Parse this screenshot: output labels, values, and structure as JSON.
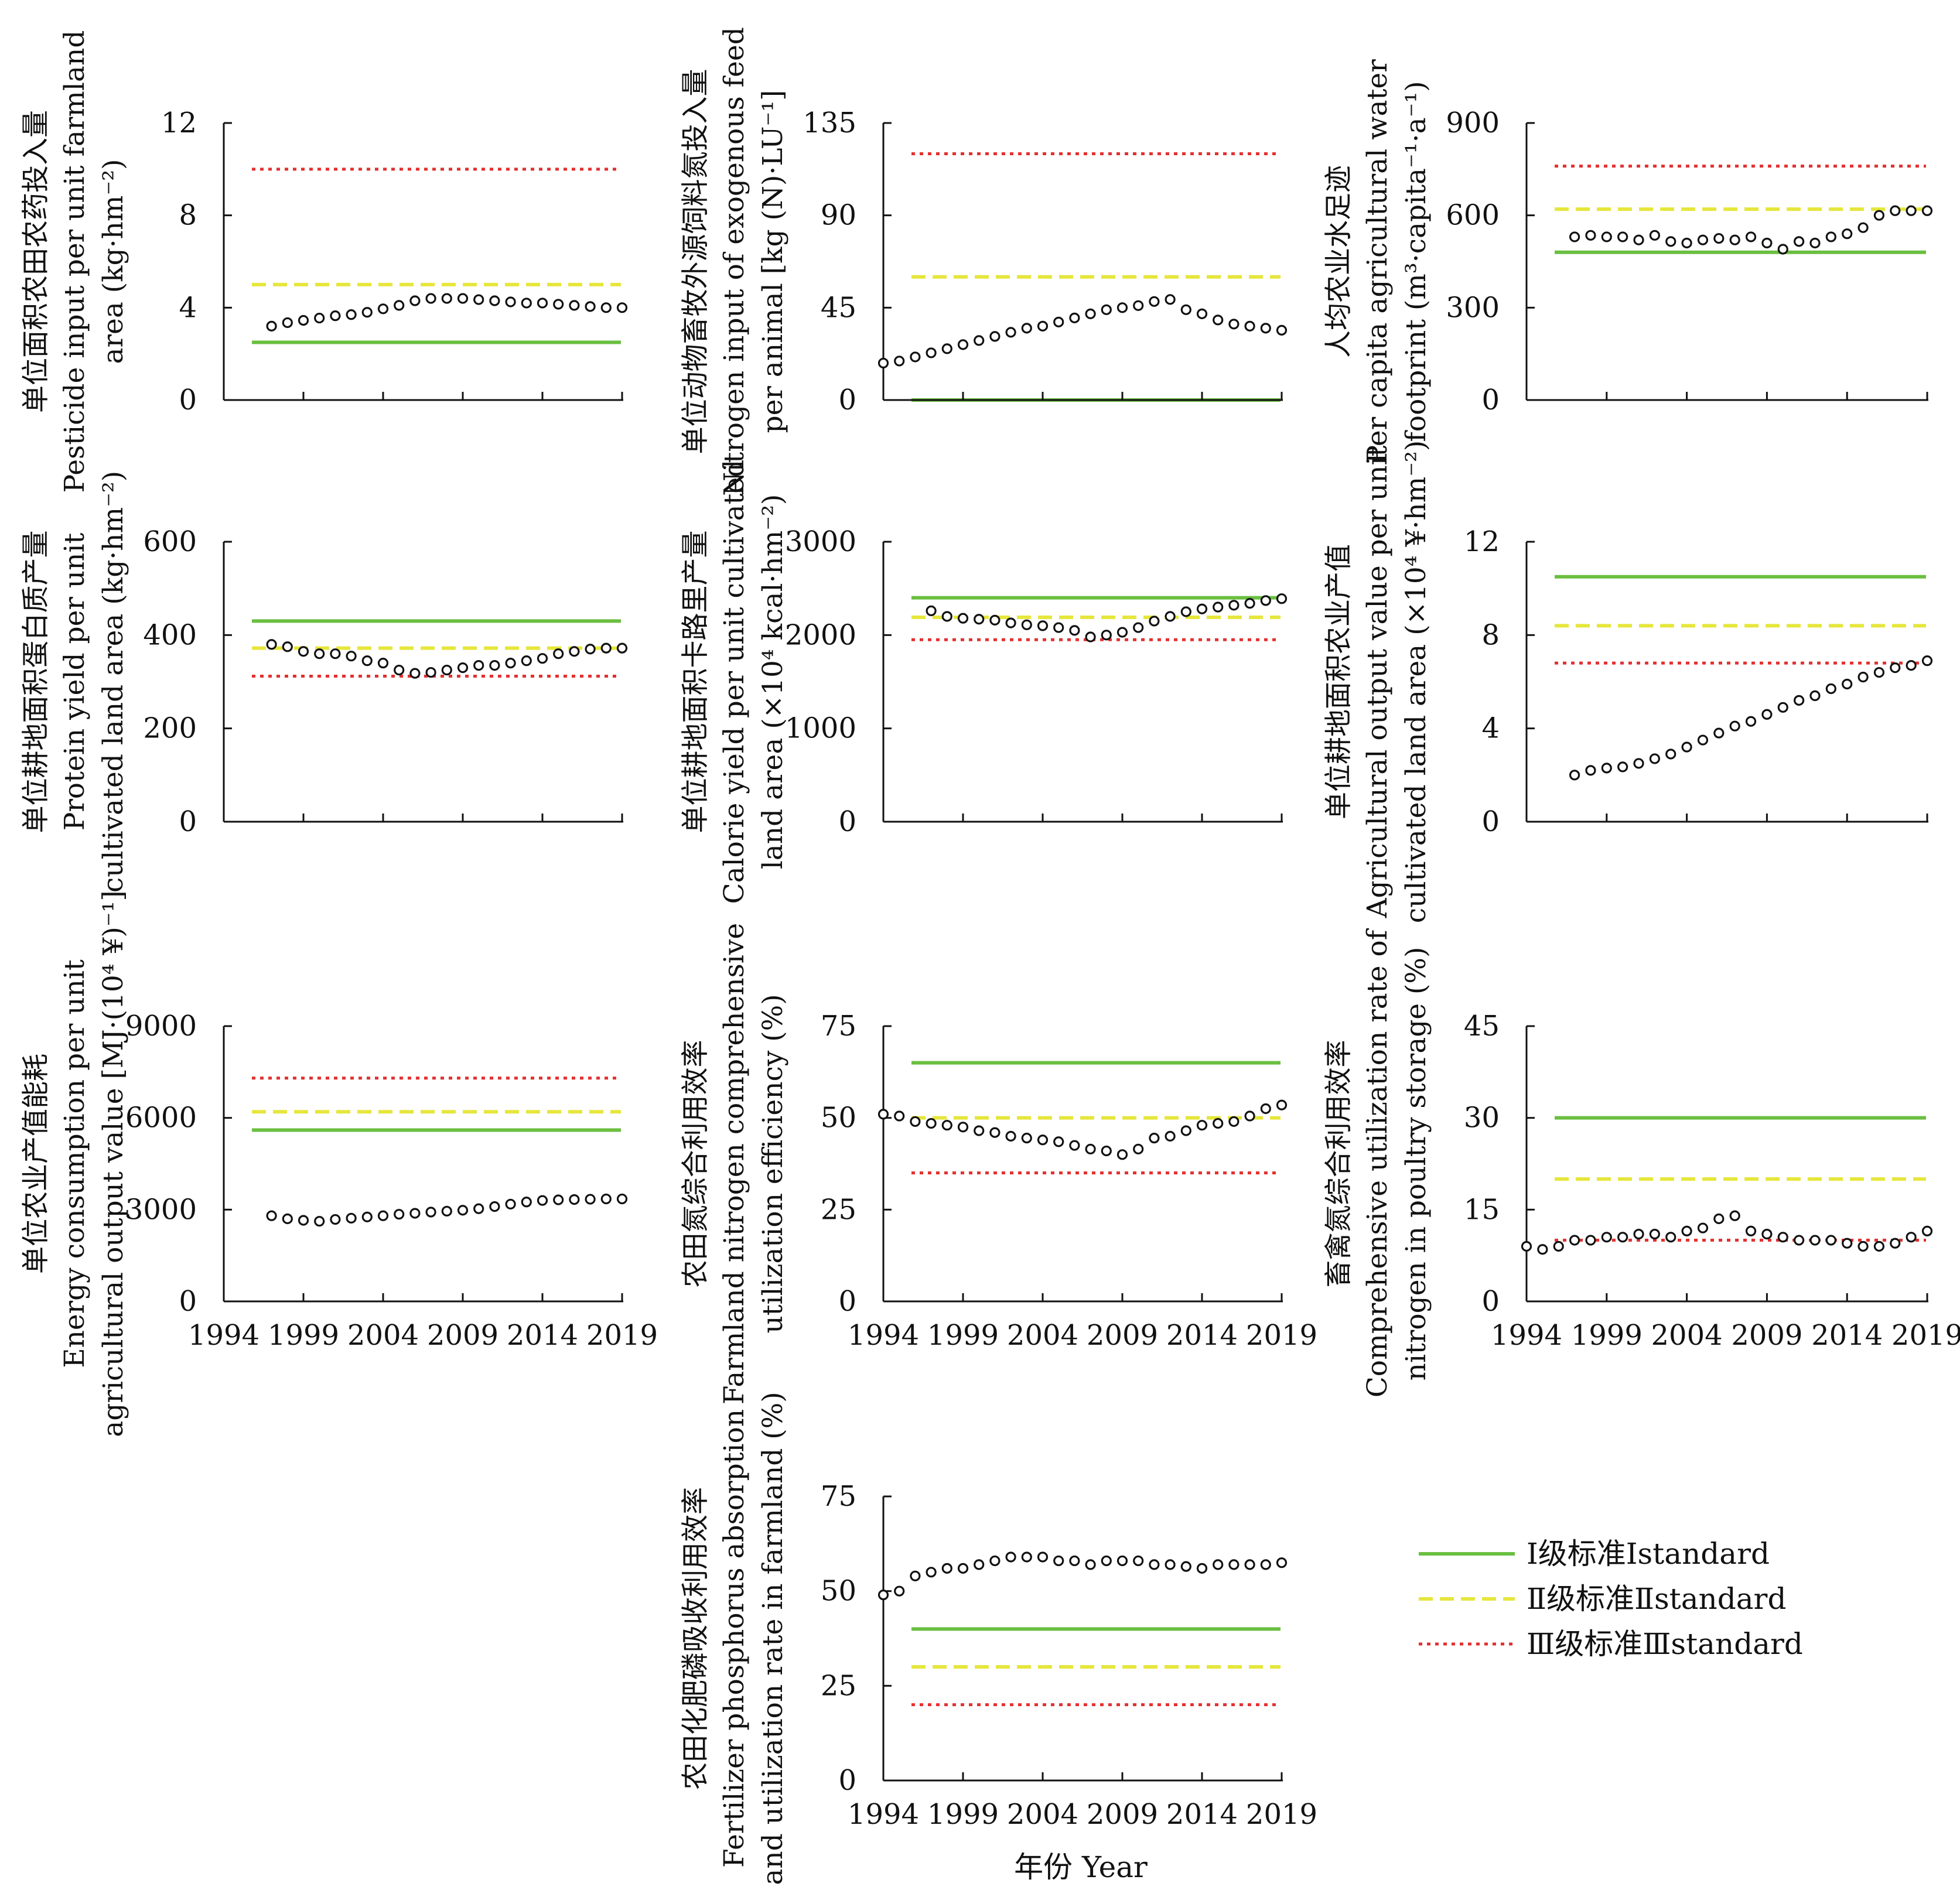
{
  "colors": {
    "level1": "#6abf40",
    "level2": "#e6e63c",
    "level3": "#e33030",
    "points": "#111111"
  },
  "x_axis_title": "年份 Year",
  "legend": [
    {
      "label": "Ⅰ级标准Ⅰstandard",
      "style": "solid",
      "color": "#6abf40"
    },
    {
      "label": "Ⅱ级标准Ⅱstandard",
      "style": "dashed",
      "color": "#e6e63c"
    },
    {
      "label": "Ⅲ级标准Ⅲstandard",
      "style": "dotted",
      "color": "#e33030"
    }
  ],
  "chart_data": [
    {
      "type": "scatter",
      "ylabel": [
        "单位面积农田农药投入量",
        "Pesticide input per unit farmland",
        "area (kg·hm⁻²)"
      ],
      "ylim": [
        0,
        12
      ],
      "yticks": [
        0,
        4,
        8,
        12
      ],
      "xlim": [
        1994,
        2019
      ],
      "xticks": [],
      "standards": {
        "level1": 2.5,
        "level2": 5.0,
        "level3": 10.0
      },
      "x": [
        1997,
        1998,
        1999,
        2000,
        2001,
        2002,
        2003,
        2004,
        2005,
        2006,
        2007,
        2008,
        2009,
        2010,
        2011,
        2012,
        2013,
        2014,
        2015,
        2016,
        2017,
        2018,
        2019
      ],
      "y": [
        3.2,
        3.35,
        3.45,
        3.55,
        3.65,
        3.7,
        3.8,
        3.95,
        4.1,
        4.3,
        4.4,
        4.4,
        4.4,
        4.35,
        4.3,
        4.25,
        4.2,
        4.2,
        4.15,
        4.1,
        4.05,
        4.0,
        4.0
      ]
    },
    {
      "type": "scatter",
      "ylabel": [
        "单位动物畜牧外源饲料氮投入量",
        "Nitrogen input of exogenous feed",
        "per animal [kg (N)·LU⁻¹]"
      ],
      "ylim": [
        0,
        135
      ],
      "yticks": [
        0,
        45,
        90,
        135
      ],
      "xlim": [
        1994,
        2019
      ],
      "xticks": [],
      "standards": {
        "level1": 0,
        "level2": 60,
        "level3": 120
      },
      "x": [
        1994,
        1995,
        1996,
        1997,
        1998,
        1999,
        2000,
        2001,
        2002,
        2003,
        2004,
        2005,
        2006,
        2007,
        2008,
        2009,
        2010,
        2011,
        2012,
        2013,
        2014,
        2015,
        2016,
        2017,
        2018,
        2019
      ],
      "y": [
        18,
        19,
        21,
        23,
        25,
        27,
        29,
        31,
        33,
        35,
        36,
        38,
        40,
        42,
        44,
        45,
        46,
        48,
        49,
        44,
        42,
        39,
        37,
        36,
        35,
        34
      ]
    },
    {
      "type": "scatter",
      "ylabel": [
        "人均农业水足迹",
        "Per capita agricultural water",
        "footprint (m³·capita⁻¹·a⁻¹)"
      ],
      "ylim": [
        0,
        900
      ],
      "yticks": [
        0,
        300,
        600,
        900
      ],
      "xlim": [
        1994,
        2019
      ],
      "xticks": [],
      "standards": {
        "level1": 480,
        "level2": 620,
        "level3": 760
      },
      "x": [
        1997,
        1998,
        1999,
        2000,
        2001,
        2002,
        2003,
        2004,
        2005,
        2006,
        2007,
        2008,
        2009,
        2010,
        2011,
        2012,
        2013,
        2014,
        2015,
        2016,
        2017,
        2018,
        2019
      ],
      "y": [
        530,
        535,
        530,
        530,
        520,
        535,
        515,
        510,
        520,
        525,
        520,
        530,
        510,
        490,
        515,
        510,
        530,
        540,
        560,
        600,
        615,
        615,
        615
      ]
    },
    {
      "type": "scatter",
      "ylabel": [
        "单位耕地面积蛋白质产量",
        "Protein yield per unit",
        "cultivated land area (kg·hm⁻²)"
      ],
      "ylim": [
        0,
        600
      ],
      "yticks": [
        0,
        200,
        400,
        600
      ],
      "xlim": [
        1994,
        2019
      ],
      "xticks": [],
      "standards": {
        "level1": 430,
        "level2": 372,
        "level3": 312
      },
      "x": [
        1997,
        1998,
        1999,
        2000,
        2001,
        2002,
        2003,
        2004,
        2005,
        2006,
        2007,
        2008,
        2009,
        2010,
        2011,
        2012,
        2013,
        2014,
        2015,
        2016,
        2017,
        2018,
        2019
      ],
      "y": [
        380,
        375,
        365,
        360,
        360,
        355,
        345,
        340,
        325,
        318,
        320,
        325,
        330,
        335,
        335,
        340,
        345,
        350,
        360,
        365,
        370,
        372,
        372
      ]
    },
    {
      "type": "scatter",
      "ylabel": [
        "单位耕地面积卡路里产量",
        "Calorie yield per unit cultivated",
        "land area (×10⁴ kcal·hm⁻²)"
      ],
      "ylim": [
        0,
        3000
      ],
      "yticks": [
        0,
        1000,
        2000,
        3000
      ],
      "xlim": [
        1994,
        2019
      ],
      "xticks": [],
      "standards": {
        "level1": 2400,
        "level2": 2190,
        "level3": 1950
      },
      "x": [
        1997,
        1998,
        1999,
        2000,
        2001,
        2002,
        2003,
        2004,
        2005,
        2006,
        2007,
        2008,
        2009,
        2010,
        2011,
        2012,
        2013,
        2014,
        2015,
        2016,
        2017,
        2018,
        2019
      ],
      "y": [
        2260,
        2200,
        2180,
        2170,
        2160,
        2130,
        2110,
        2100,
        2080,
        2050,
        1980,
        2000,
        2030,
        2080,
        2150,
        2200,
        2250,
        2280,
        2300,
        2320,
        2340,
        2370,
        2390
      ]
    },
    {
      "type": "scatter",
      "ylabel": [
        "单位耕地面积农业产值",
        "Agricultural output value per unit",
        "cultivated land area (×10⁴ ¥·hm⁻²)"
      ],
      "ylim": [
        0,
        12
      ],
      "yticks": [
        0,
        4,
        8,
        12
      ],
      "xlim": [
        1994,
        2019
      ],
      "xticks": [],
      "standards": {
        "level1": 10.5,
        "level2": 8.4,
        "level3": 6.8
      },
      "x": [
        1997,
        1998,
        1999,
        2000,
        2001,
        2002,
        2003,
        2004,
        2005,
        2006,
        2007,
        2008,
        2009,
        2010,
        2011,
        2012,
        2013,
        2014,
        2015,
        2016,
        2017,
        2018,
        2019
      ],
      "y": [
        2.0,
        2.2,
        2.3,
        2.35,
        2.5,
        2.7,
        2.9,
        3.2,
        3.5,
        3.8,
        4.1,
        4.3,
        4.6,
        4.9,
        5.2,
        5.4,
        5.7,
        5.9,
        6.2,
        6.4,
        6.6,
        6.7,
        6.9
      ]
    },
    {
      "type": "scatter",
      "ylabel": [
        "单位农业产值能耗",
        "Energy consumption per unit",
        "agricultural output value [MJ·(10⁴ ¥)⁻¹]"
      ],
      "ylim": [
        0,
        9000
      ],
      "yticks": [
        0,
        3000,
        6000,
        9000
      ],
      "xlim": [
        1994,
        2019
      ],
      "xticks": [
        1994,
        1999,
        2004,
        2009,
        2014,
        2019
      ],
      "standards": {
        "level1": 5600,
        "level2": 6200,
        "level3": 7300
      },
      "x": [
        1997,
        1998,
        1999,
        2000,
        2001,
        2002,
        2003,
        2004,
        2005,
        2006,
        2007,
        2008,
        2009,
        2010,
        2011,
        2012,
        2013,
        2014,
        2015,
        2016,
        2017,
        2018,
        2019
      ],
      "y": [
        2800,
        2700,
        2650,
        2620,
        2680,
        2720,
        2760,
        2800,
        2850,
        2880,
        2920,
        2950,
        2980,
        3030,
        3100,
        3180,
        3250,
        3300,
        3320,
        3330,
        3340,
        3350,
        3350
      ]
    },
    {
      "type": "scatter",
      "ylabel": [
        "农田氮综合利用效率",
        "Farmland nitrogen comprehensive",
        "utilization efficiency (%)"
      ],
      "ylim": [
        0,
        75
      ],
      "yticks": [
        0,
        25,
        50,
        75
      ],
      "xlim": [
        1994,
        2019
      ],
      "xticks": [
        1994,
        1999,
        2004,
        2009,
        2014,
        2019
      ],
      "standards": {
        "level1": 65,
        "level2": 50,
        "level3": 35
      },
      "x": [
        1994,
        1995,
        1996,
        1997,
        1998,
        1999,
        2000,
        2001,
        2002,
        2003,
        2004,
        2005,
        2006,
        2007,
        2008,
        2009,
        2010,
        2011,
        2012,
        2013,
        2014,
        2015,
        2016,
        2017,
        2018,
        2019
      ],
      "y": [
        51,
        50.5,
        49,
        48.5,
        48,
        47.5,
        46.5,
        46,
        45,
        44.5,
        44,
        43.5,
        42.5,
        41.5,
        41,
        40,
        41.5,
        44.5,
        45,
        46.5,
        48,
        48.5,
        49,
        50.5,
        52.5,
        53.5
      ]
    },
    {
      "type": "scatter",
      "ylabel": [
        "畜禽氮综合利用效率",
        "Comprehensive utilization rate of",
        "nitrogen in poultry storage (%)"
      ],
      "ylim": [
        0,
        45
      ],
      "yticks": [
        0,
        15,
        30,
        45
      ],
      "xlim": [
        1994,
        2019
      ],
      "xticks": [
        1994,
        1999,
        2004,
        2009,
        2014,
        2019
      ],
      "standards": {
        "level1": 30,
        "level2": 20,
        "level3": 10
      },
      "x": [
        1994,
        1995,
        1996,
        1997,
        1998,
        1999,
        2000,
        2001,
        2002,
        2003,
        2004,
        2005,
        2006,
        2007,
        2008,
        2009,
        2010,
        2011,
        2012,
        2013,
        2014,
        2015,
        2016,
        2017,
        2018,
        2019
      ],
      "y": [
        9,
        8.5,
        9,
        10,
        10,
        10.5,
        10.5,
        11,
        11,
        10.5,
        11.5,
        12,
        13.5,
        14,
        11.5,
        11,
        10.5,
        10,
        10,
        10,
        9.5,
        9,
        9,
        9.5,
        10.5,
        11.5
      ]
    },
    {
      "type": "scatter",
      "ylabel": [
        "农田化肥磷吸收利用效率",
        "Fertilizer phosphorus absorption",
        "and utilization rate in farmland (%)"
      ],
      "ylim": [
        0,
        75
      ],
      "yticks": [
        0,
        25,
        50,
        75
      ],
      "xlim": [
        1994,
        2019
      ],
      "xticks": [
        1994,
        1999,
        2004,
        2009,
        2014,
        2019
      ],
      "standards": {
        "level1": 40,
        "level2": 30,
        "level3": 20
      },
      "x": [
        1994,
        1995,
        1996,
        1997,
        1998,
        1999,
        2000,
        2001,
        2002,
        2003,
        2004,
        2005,
        2006,
        2007,
        2008,
        2009,
        2010,
        2011,
        2012,
        2013,
        2014,
        2015,
        2016,
        2017,
        2018,
        2019
      ],
      "y": [
        49,
        50,
        54,
        55,
        56,
        56,
        57,
        58,
        59,
        59,
        59,
        58,
        58,
        57,
        58,
        58,
        58,
        57,
        57,
        56.5,
        56,
        57,
        57,
        57,
        57,
        57.5
      ]
    }
  ]
}
